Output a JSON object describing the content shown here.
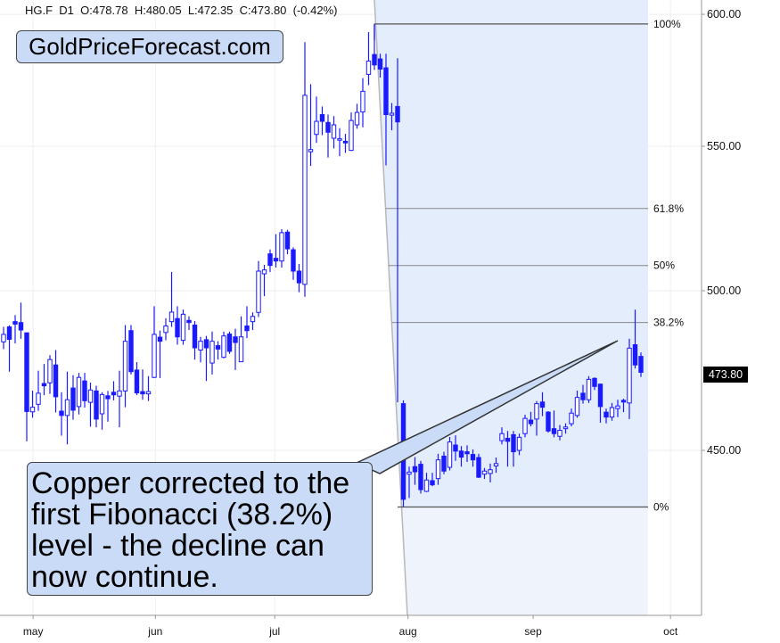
{
  "header": {
    "text": "HG.F  D1  O:478.78  H:480.05  L:472.35  C:473.80  (-0.42%)"
  },
  "logo": {
    "text": "GoldPriceForecast.com"
  },
  "callout": {
    "lines": [
      "Copper corrected to the",
      "first Fibonacci (38.2%)",
      "level - the decline can",
      "now continue."
    ]
  },
  "colors": {
    "candle": "#1a1aff",
    "fib_fill": "#e4edfb",
    "callout_fill": "#c9dbf7",
    "last_price_bg": "#000000"
  },
  "chart_data": {
    "type": "candlestick",
    "symbol": "HG.F",
    "timeframe": "D1",
    "yscale": "log",
    "ylim": [
      403.6,
      605.7
    ],
    "yticks": [
      "450.00",
      "500.00",
      "550.00",
      "600.00"
    ],
    "xticks": [
      {
        "label": "may",
        "index": 5.1
      },
      {
        "label": "jun",
        "index": 26.2
      },
      {
        "label": "jul",
        "index": 46.8
      },
      {
        "label": "aug",
        "index": 69.8
      },
      {
        "label": "sep",
        "index": 91.4
      },
      {
        "label": "oct",
        "index": 115.1
      }
    ],
    "grid": true,
    "last_price": "473.80",
    "fibonacci": {
      "high": 596.2,
      "low": 433.5,
      "start_index": 64,
      "levels": [
        {
          "ratio": 1.0,
          "label": "100%"
        },
        {
          "ratio": 0.618,
          "label": "61.8%"
        },
        {
          "ratio": 0.5,
          "label": "50%"
        },
        {
          "ratio": 0.382,
          "label": "38.2%"
        },
        {
          "ratio": 0.0,
          "label": "0%"
        }
      ]
    },
    "candles_ohlc": [
      [
        483.4,
        488.2,
        481.1,
        485.8
      ],
      [
        488.2,
        488.7,
        474.0,
        484.2
      ],
      [
        489.9,
        492.0,
        482.9,
        489.1
      ],
      [
        489.6,
        496.1,
        484.4,
        487.2
      ],
      [
        486.3,
        486.3,
        452.7,
        461.7
      ],
      [
        461.6,
        468.1,
        459.8,
        463.0
      ],
      [
        463.9,
        474.3,
        461.9,
        467.3
      ],
      [
        470.3,
        476.4,
        466.7,
        469.6
      ],
      [
        470.5,
        479.2,
        467.1,
        477.8
      ],
      [
        476.1,
        480.8,
        461.4,
        466.2
      ],
      [
        461.8,
        467.6,
        454.4,
        460.5
      ],
      [
        460.5,
        474.0,
        451.8,
        465.3
      ],
      [
        468.9,
        472.9,
        459.2,
        462.1
      ],
      [
        463.2,
        473.6,
        460.8,
        472.2
      ],
      [
        471.1,
        473.6,
        462.9,
        465.0
      ],
      [
        464.5,
        470.6,
        457.1,
        468.3
      ],
      [
        468.0,
        469.6,
        456.9,
        459.4
      ],
      [
        461.0,
        467.6,
        456.2,
        466.9
      ],
      [
        466.5,
        468.0,
        458.6,
        465.6
      ],
      [
        467.6,
        471.0,
        465.1,
        466.8
      ],
      [
        466.4,
        474.3,
        456.9,
        468.0
      ],
      [
        468.0,
        488.8,
        463.0,
        483.6
      ],
      [
        487.0,
        488.8,
        473.1,
        474.0
      ],
      [
        474.5,
        477.0,
        466.7,
        467.4
      ],
      [
        467.8,
        474.7,
        465.3,
        467.1
      ],
      [
        467.1,
        472.6,
        464.9,
        467.8
      ],
      [
        472.2,
        494.9,
        472.0,
        485.8
      ],
      [
        484.9,
        487.0,
        472.0,
        483.6
      ],
      [
        486.4,
        491.0,
        483.9,
        488.5
      ],
      [
        489.9,
        506.2,
        488.2,
        493.0
      ],
      [
        490.9,
        494.9,
        482.5,
        485.0
      ],
      [
        483.9,
        493.8,
        482.5,
        492.3
      ],
      [
        490.3,
        491.6,
        487.2,
        489.6
      ],
      [
        488.8,
        490.1,
        477.8,
        481.5
      ],
      [
        480.8,
        485.0,
        476.9,
        483.6
      ],
      [
        484.1,
        485.3,
        471.1,
        481.5
      ],
      [
        476.7,
        486.7,
        473.1,
        483.6
      ],
      [
        482.2,
        483.6,
        477.8,
        481.1
      ],
      [
        478.5,
        486.7,
        478.2,
        485.3
      ],
      [
        485.9,
        486.7,
        479.6,
        480.4
      ],
      [
        485.0,
        487.6,
        474.5,
        483.2
      ],
      [
        477.1,
        491.6,
        477.1,
        485.0
      ],
      [
        488.5,
        494.9,
        484.6,
        487.0
      ],
      [
        489.9,
        492.9,
        487.2,
        491.6
      ],
      [
        492.9,
        509.9,
        491.4,
        506.5
      ],
      [
        505.6,
        508.6,
        498.2,
        506.9
      ],
      [
        512.3,
        513.8,
        506.2,
        508.4
      ],
      [
        510.8,
        519.0,
        507.7,
        509.9
      ],
      [
        509.9,
        520.7,
        507.7,
        519.5
      ],
      [
        519.7,
        520.5,
        512.2,
        514.0
      ],
      [
        513.7,
        514.5,
        503.6,
        506.5
      ],
      [
        506.5,
        508.9,
        499.5,
        502.6
      ],
      [
        502.1,
        589.1,
        498.0,
        568.8
      ],
      [
        548.0,
        573.0,
        542.9,
        548.8
      ],
      [
        554.3,
        568.3,
        551.2,
        559.1
      ],
      [
        561.6,
        564.6,
        554.0,
        559.1
      ],
      [
        558.7,
        561.6,
        545.9,
        555.1
      ],
      [
        552.9,
        561.0,
        549.2,
        557.8
      ],
      [
        552.2,
        556.6,
        546.4,
        552.7
      ],
      [
        551.8,
        554.5,
        547.6,
        551.2
      ],
      [
        548.5,
        562.4,
        548.3,
        559.4
      ],
      [
        557.8,
        565.6,
        556.4,
        562.4
      ],
      [
        562.6,
        575.3,
        556.9,
        570.3
      ],
      [
        576.7,
        593.0,
        572.6,
        581.8
      ],
      [
        584.3,
        596.2,
        578.4,
        580.3
      ],
      [
        582.6,
        584.6,
        575.5,
        578.7
      ],
      [
        579.2,
        584.6,
        543.1,
        561.6
      ],
      [
        561.4,
        565.9,
        555.8,
        562.1
      ],
      [
        564.6,
        582.9,
        464.5,
        558.9
      ],
      [
        464.1,
        465.1,
        433.5,
        435.7
      ],
      [
        443.0,
        445.2,
        436.1,
        443.6
      ],
      [
        445.2,
        448.0,
        439.9,
        443.7
      ],
      [
        445.9,
        446.9,
        437.4,
        438.5
      ],
      [
        438.0,
        443.4,
        437.8,
        441.3
      ],
      [
        441.1,
        443.4,
        439.5,
        439.9
      ],
      [
        441.7,
        449.0,
        439.9,
        447.2
      ],
      [
        448.3,
        449.6,
        443.0,
        443.9
      ],
      [
        445.0,
        454.0,
        444.1,
        452.5
      ],
      [
        451.6,
        454.5,
        446.9,
        449.8
      ],
      [
        449.8,
        451.3,
        445.2,
        448.0
      ],
      [
        449.6,
        451.5,
        446.6,
        449.0
      ],
      [
        448.8,
        450.3,
        445.2,
        447.2
      ],
      [
        447.9,
        449.0,
        441.9,
        442.1
      ],
      [
        443.0,
        444.8,
        441.6,
        443.9
      ],
      [
        443.2,
        446.1,
        440.6,
        444.3
      ],
      [
        445.4,
        447.9,
        443.4,
        446.1
      ],
      [
        452.9,
        456.9,
        451.8,
        455.0
      ],
      [
        453.6,
        455.8,
        445.2,
        452.7
      ],
      [
        454.7,
        455.8,
        445.2,
        449.6
      ],
      [
        450.0,
        455.0,
        448.6,
        453.9
      ],
      [
        455.0,
        460.7,
        453.9,
        459.6
      ],
      [
        459.1,
        461.6,
        457.2,
        458.0
      ],
      [
        459.4,
        464.9,
        454.4,
        464.1
      ],
      [
        464.6,
        467.6,
        460.3,
        463.0
      ],
      [
        461.5,
        461.8,
        455.3,
        455.8
      ],
      [
        456.5,
        462.0,
        453.9,
        455.0
      ],
      [
        454.2,
        457.6,
        453.0,
        456.0
      ],
      [
        456.5,
        458.1,
        455.0,
        457.0
      ],
      [
        458.0,
        462.6,
        457.2,
        461.2
      ],
      [
        460.5,
        468.1,
        459.8,
        466.0
      ],
      [
        467.3,
        469.9,
        464.1,
        465.3
      ],
      [
        465.3,
        472.6,
        464.3,
        471.6
      ],
      [
        471.9,
        472.2,
        468.3,
        469.4
      ],
      [
        470.1,
        470.3,
        458.3,
        463.2
      ],
      [
        461.5,
        462.6,
        458.1,
        460.0
      ],
      [
        460.0,
        464.3,
        458.9,
        462.9
      ],
      [
        462.6,
        465.3,
        460.0,
        463.4
      ],
      [
        465.1,
        465.6,
        461.5,
        464.6
      ],
      [
        464.3,
        484.4,
        459.4,
        481.4
      ],
      [
        482.5,
        493.8,
        475.0,
        476.1
      ],
      [
        478.78,
        480.05,
        472.35,
        473.8
      ]
    ]
  }
}
